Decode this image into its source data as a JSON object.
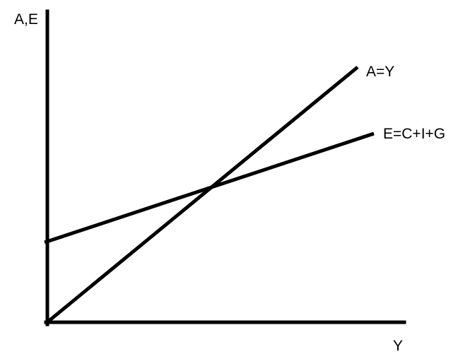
{
  "diagram": {
    "axes": {
      "y_label": "A,E",
      "x_label": "Y"
    },
    "lines": [
      {
        "label": "A=Y"
      },
      {
        "label": "E=C+I+G"
      }
    ],
    "stroke_color": "#000000",
    "background_color": "#ffffff"
  }
}
